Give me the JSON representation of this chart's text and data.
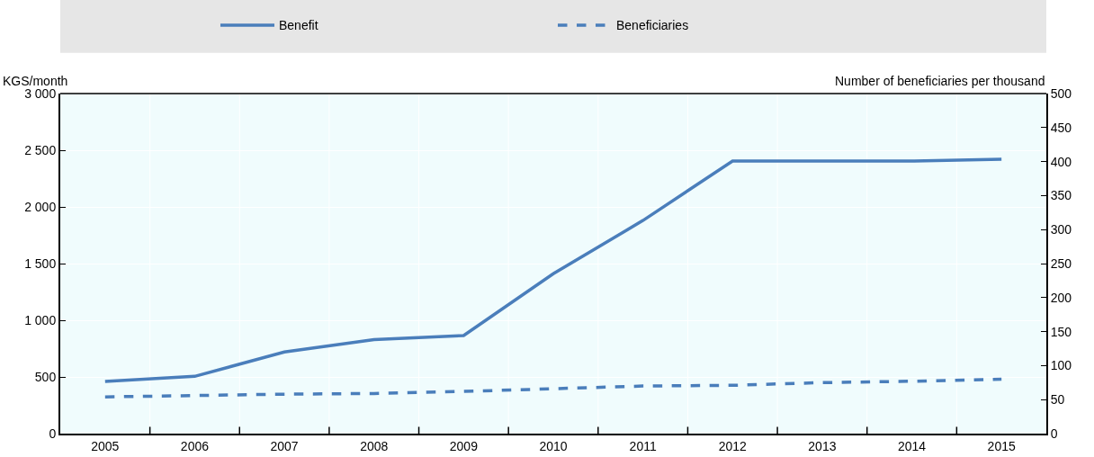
{
  "chart_data": {
    "type": "line",
    "categories": [
      "2005",
      "2006",
      "2007",
      "2008",
      "2009",
      "2010",
      "2011",
      "2012",
      "2013",
      "2014",
      "2015"
    ],
    "series": [
      {
        "name": "Benefit",
        "color": "#4a7ebb",
        "line_style": "solid",
        "values": [
          460,
          505,
          720,
          830,
          865,
          1410,
          1880,
          2405,
          2405,
          2405,
          2420
        ]
      },
      {
        "name": "Beneficiaries",
        "color": "#4a7ebb",
        "line_style": "dashed",
        "axis": "y2",
        "values": [
          54,
          56,
          58,
          59,
          62,
          66,
          70,
          71,
          75,
          77,
          80
        ]
      }
    ],
    "ylabel": "KGS/month",
    "y2label": "Number of beneficiaries per thousand",
    "ylim": [
      0,
      3000
    ],
    "yticks": [
      0,
      {
        "value": 500,
        "label": "500"
      },
      {
        "value": 1000,
        "label": "1 000"
      },
      {
        "value": 1500,
        "label": "1 500"
      },
      {
        "value": 2000,
        "label": "2 000"
      },
      {
        "value": 2500,
        "label": "2 500"
      },
      {
        "value": 3000,
        "label": "3 000"
      }
    ],
    "y2lim": [
      0,
      500
    ],
    "y2ticks": [
      0,
      50,
      100,
      150,
      200,
      250,
      300,
      350,
      400,
      450,
      500
    ],
    "grid": true,
    "legend": "top",
    "marker": "none"
  }
}
